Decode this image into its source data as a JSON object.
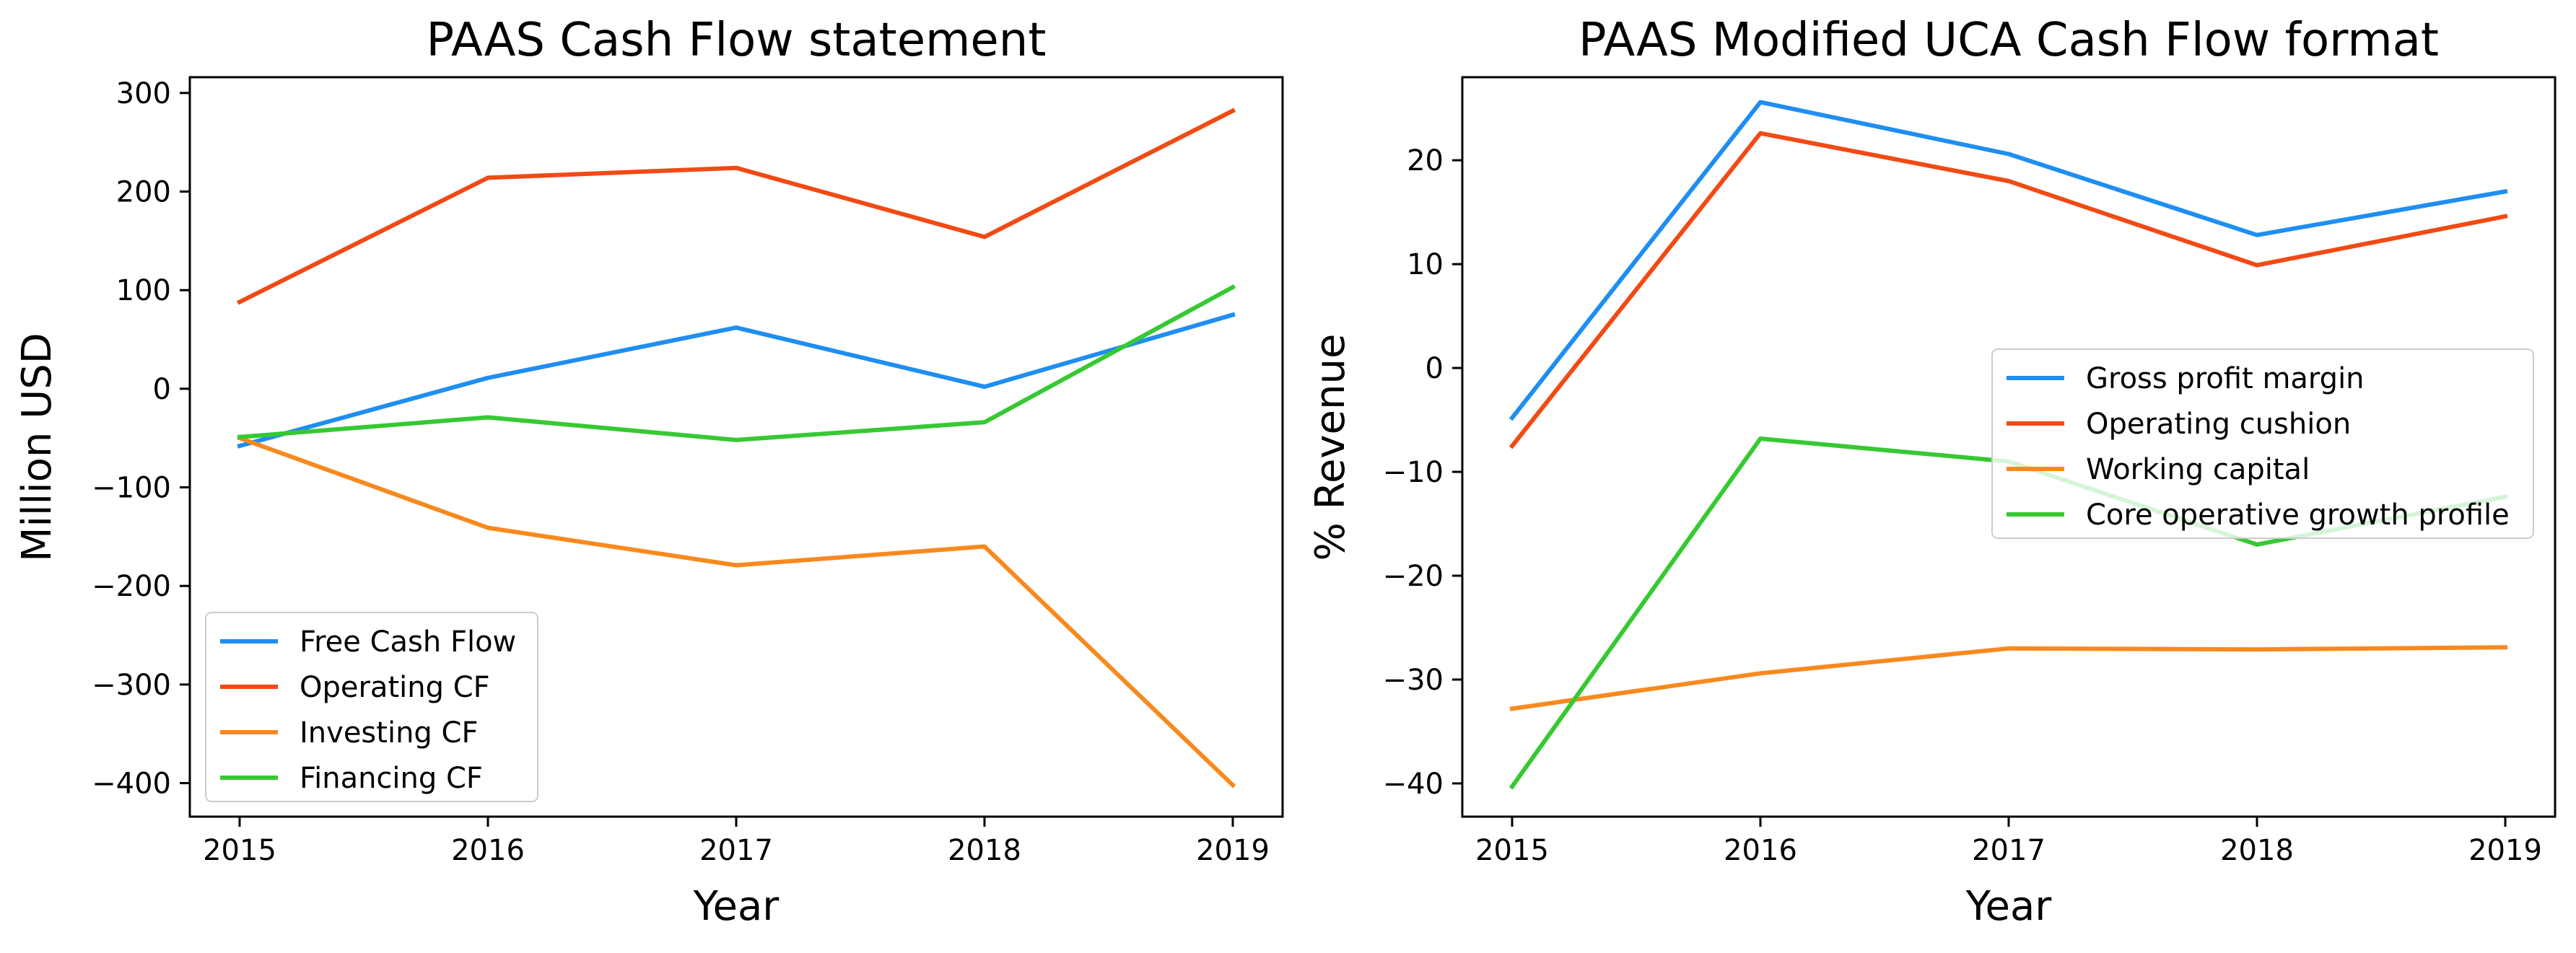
{
  "chart_data": [
    {
      "type": "line",
      "title": "PAAS Cash Flow statement",
      "xlabel": "Year",
      "ylabel": "Million USD",
      "x": [
        "2015",
        "2016",
        "2017",
        "2018",
        "2019"
      ],
      "xlim": [
        2015,
        2019
      ],
      "ylim": [
        -434,
        316
      ],
      "yticks": [
        300,
        200,
        100,
        0,
        -100,
        -200,
        -300,
        -400
      ],
      "ytick_labels": [
        "300",
        "200",
        "100",
        "0",
        "−100",
        "−200",
        "−300",
        "−400"
      ],
      "grid": false,
      "legend_position": "lower-left",
      "series": [
        {
          "name": "Free Cash Flow",
          "color": "#1f8ef1",
          "values": [
            -58,
            11,
            62,
            2,
            75
          ]
        },
        {
          "name": "Operating CF",
          "color": "#f24a14",
          "values": [
            88,
            214,
            224,
            154,
            282
          ]
        },
        {
          "name": "Investing CF",
          "color": "#f8891e",
          "values": [
            -50,
            -141,
            -179,
            -160,
            -402
          ]
        },
        {
          "name": "Financing CF",
          "color": "#36c932",
          "values": [
            -49,
            -29,
            -52,
            -34,
            103
          ]
        }
      ]
    },
    {
      "type": "line",
      "title": "PAAS Modified UCA Cash Flow format",
      "xlabel": "Year",
      "ylabel": "% Revenue",
      "x": [
        "2015",
        "2016",
        "2017",
        "2018",
        "2019"
      ],
      "xlim": [
        2015,
        2019
      ],
      "ylim": [
        -43.2,
        28.0
      ],
      "yticks": [
        20,
        10,
        0,
        -10,
        -20,
        -30,
        -40
      ],
      "ytick_labels": [
        "20",
        "10",
        "0",
        "−10",
        "−20",
        "−30",
        "−40"
      ],
      "grid": false,
      "legend_position": "center-right",
      "series": [
        {
          "name": "Gross profit margin",
          "color": "#1f8ef1",
          "values": [
            -4.8,
            25.6,
            20.6,
            12.8,
            17.0
          ]
        },
        {
          "name": "Operating cushion",
          "color": "#f24a14",
          "values": [
            -7.5,
            22.6,
            18.0,
            9.9,
            14.6
          ]
        },
        {
          "name": "Working capital",
          "color": "#f8891e",
          "values": [
            -32.8,
            -29.4,
            -27.0,
            -27.1,
            -26.9
          ]
        },
        {
          "name": "Core operative growth profile",
          "color": "#36c932",
          "values": [
            -40.3,
            -6.8,
            -9.0,
            -17.0,
            -12.4
          ]
        }
      ]
    }
  ]
}
